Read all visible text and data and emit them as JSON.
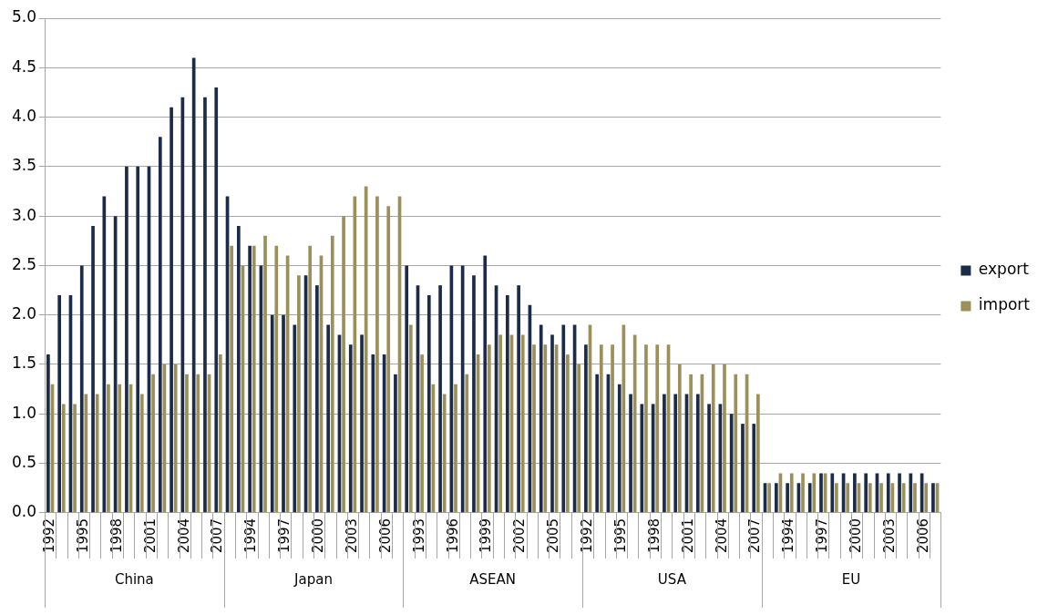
{
  "chart_data": {
    "type": "bar",
    "categories": [
      "1992",
      null,
      null,
      "1995",
      null,
      null,
      "1998",
      null,
      null,
      "2001",
      null,
      null,
      "2004",
      null,
      null,
      "2007",
      null,
      null,
      "1994",
      null,
      null,
      "1997",
      null,
      null,
      "2000",
      null,
      null,
      "2003",
      null,
      null,
      "2006",
      null,
      null,
      "1993",
      null,
      null,
      "1996",
      null,
      null,
      "1999",
      null,
      null,
      "2002",
      null,
      null,
      "2005",
      null,
      null,
      "1992",
      null,
      null,
      "1995",
      null,
      null,
      "1998",
      null,
      null,
      "2001",
      null,
      null,
      "2004",
      null,
      null,
      "2007",
      null,
      null,
      "1994",
      null,
      null,
      "1997",
      null,
      null,
      "2000",
      null,
      null,
      "2003",
      null,
      null,
      "2006",
      null
    ],
    "series": [
      {
        "name": "export",
        "color": "#1b2b48",
        "values": [
          1.6,
          2.2,
          2.2,
          2.5,
          2.9,
          3.2,
          3.0,
          3.5,
          3.5,
          3.5,
          3.8,
          4.1,
          4.2,
          4.6,
          4.2,
          4.3,
          3.2,
          2.9,
          2.7,
          2.5,
          2.0,
          2.0,
          1.9,
          2.4,
          2.3,
          1.9,
          1.8,
          1.7,
          1.8,
          1.6,
          1.6,
          1.4,
          2.5,
          2.3,
          2.2,
          2.3,
          2.5,
          2.5,
          2.4,
          2.6,
          2.3,
          2.2,
          2.3,
          2.1,
          1.9,
          1.8,
          1.9,
          1.9,
          1.7,
          1.4,
          1.4,
          1.3,
          1.2,
          1.1,
          1.1,
          1.2,
          1.2,
          1.2,
          1.2,
          1.1,
          1.1,
          1.0,
          0.9,
          0.9,
          0.3,
          0.3,
          0.3,
          0.3,
          0.3,
          0.4,
          0.4,
          0.4,
          0.4,
          0.4,
          0.4,
          0.4,
          0.4,
          0.4,
          0.4,
          0.3
        ]
      },
      {
        "name": "import",
        "color": "#9b9059",
        "values": [
          1.3,
          1.1,
          1.1,
          1.2,
          1.2,
          1.3,
          1.3,
          1.3,
          1.2,
          1.4,
          1.5,
          1.5,
          1.4,
          1.4,
          1.4,
          1.6,
          2.7,
          2.5,
          2.7,
          2.8,
          2.7,
          2.6,
          2.4,
          2.7,
          2.6,
          2.8,
          3.0,
          3.2,
          3.3,
          3.2,
          3.1,
          3.2,
          1.9,
          1.6,
          1.3,
          1.2,
          1.3,
          1.4,
          1.6,
          1.7,
          1.8,
          1.8,
          1.8,
          1.7,
          1.7,
          1.7,
          1.6,
          1.5,
          1.9,
          1.7,
          1.7,
          1.9,
          1.8,
          1.7,
          1.7,
          1.7,
          1.5,
          1.4,
          1.4,
          1.5,
          1.5,
          1.4,
          1.4,
          1.2,
          0.3,
          0.4,
          0.4,
          0.4,
          0.4,
          0.4,
          0.3,
          0.3,
          0.3,
          0.3,
          0.3,
          0.3,
          0.3,
          0.3,
          0.3,
          0.3
        ]
      }
    ],
    "ylim": [
      0,
      5
    ],
    "yticks": [
      {
        "value": 0,
        "label": "0.0"
      },
      {
        "value": 0.5,
        "label": "0.5"
      },
      {
        "value": 1,
        "label": "1.0"
      },
      {
        "value": 1.5,
        "label": "1.5"
      },
      {
        "value": 2,
        "label": "2.0"
      },
      {
        "value": 2.5,
        "label": "2.5"
      },
      {
        "value": 3,
        "label": "3.0"
      },
      {
        "value": 3.5,
        "label": "3.5"
      },
      {
        "value": 4,
        "label": "4.0"
      },
      {
        "value": 4.5,
        "label": "4.5"
      },
      {
        "value": 5,
        "label": "5.0"
      }
    ],
    "grid": "y",
    "legend": "right",
    "annotations": [
      "China",
      "Japan",
      "ASEAN",
      "USA",
      "EU"
    ]
  }
}
